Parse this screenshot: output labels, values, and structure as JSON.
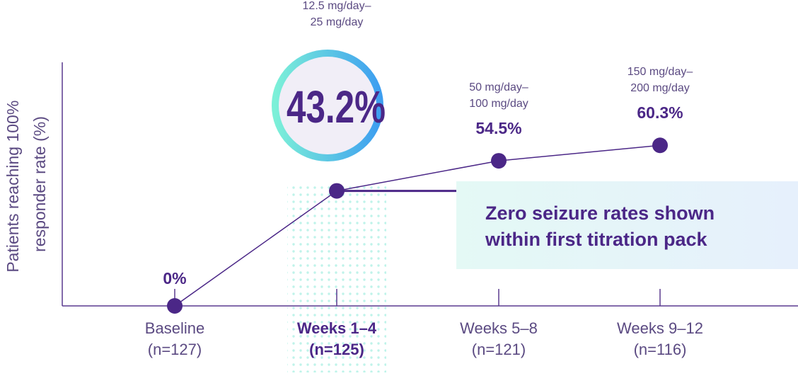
{
  "chart_data": {
    "type": "line",
    "title": "",
    "xlabel": "",
    "ylabel": "Patients reaching 100% responder rate (%)",
    "ylabel_lines": [
      "Patients reaching 100%",
      "responder rate (%)"
    ],
    "ylim": [
      0,
      80
    ],
    "grid": false,
    "categories": [
      "Baseline",
      "Weeks 1-4",
      "Weeks 5-8",
      "Weeks 9-12"
    ],
    "category_labels": [
      {
        "name": "Baseline",
        "n": "(n=127)",
        "highlight": false
      },
      {
        "name": "Weeks 1–4",
        "n": "(n=125)",
        "highlight": true
      },
      {
        "name": "Weeks 5–8",
        "n": "(n=121)",
        "highlight": false
      },
      {
        "name": "Weeks 9–12",
        "n": "(n=116)",
        "highlight": false
      }
    ],
    "series": [
      {
        "values": [
          0,
          43.2,
          54.5,
          60.3
        ],
        "data_labels": [
          "0%",
          "43.2%",
          "54.5%",
          "60.3%"
        ]
      }
    ],
    "dose_labels": [
      null,
      [
        "12.5 mg/day–",
        "25 mg/day"
      ],
      [
        "50 mg/day–",
        "100 mg/day"
      ],
      [
        "150 mg/day–",
        "200 mg/day"
      ]
    ],
    "callout": {
      "lines": [
        "Zero seizure rates shown",
        "within first titration pack"
      ]
    }
  },
  "colors": {
    "purple": "#4b2787",
    "axis": "#5a3a8f",
    "text_light": "#5b4a82",
    "ring_start": "#7cf0d8",
    "ring_end": "#3d9ef0",
    "circle_fill": "#f1eef7",
    "callout_start": "#e4f9f5",
    "callout_end": "#e6f0fc",
    "dots": "#bff3ea"
  }
}
